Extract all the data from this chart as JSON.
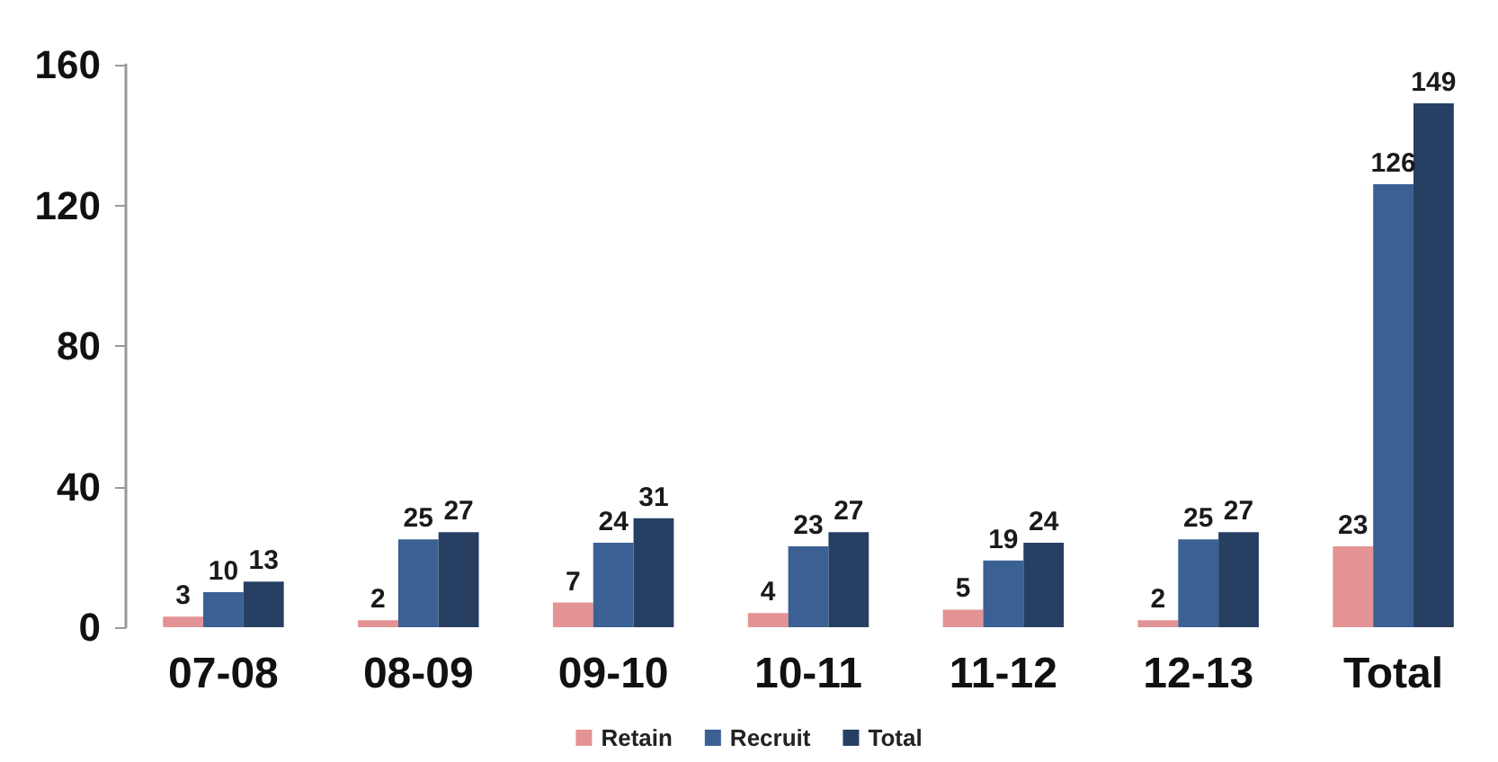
{
  "chart_data": {
    "type": "bar",
    "categories": [
      "07-08",
      "08-09",
      "09-10",
      "10-11",
      "11-12",
      "12-13",
      "Total"
    ],
    "series": [
      {
        "name": "Retain",
        "color": "#e39394",
        "values": [
          3,
          2,
          7,
          4,
          5,
          2,
          23
        ]
      },
      {
        "name": "Recruit",
        "color": "#3b6194",
        "values": [
          10,
          25,
          24,
          23,
          19,
          25,
          126
        ]
      },
      {
        "name": "Total",
        "color": "#263f63",
        "values": [
          13,
          27,
          31,
          27,
          24,
          27,
          149
        ]
      }
    ],
    "ylim": [
      0,
      160
    ],
    "yticks": [
      0,
      40,
      80,
      120,
      160
    ],
    "grid": false,
    "legend": "bottom",
    "data_labels": true
  }
}
